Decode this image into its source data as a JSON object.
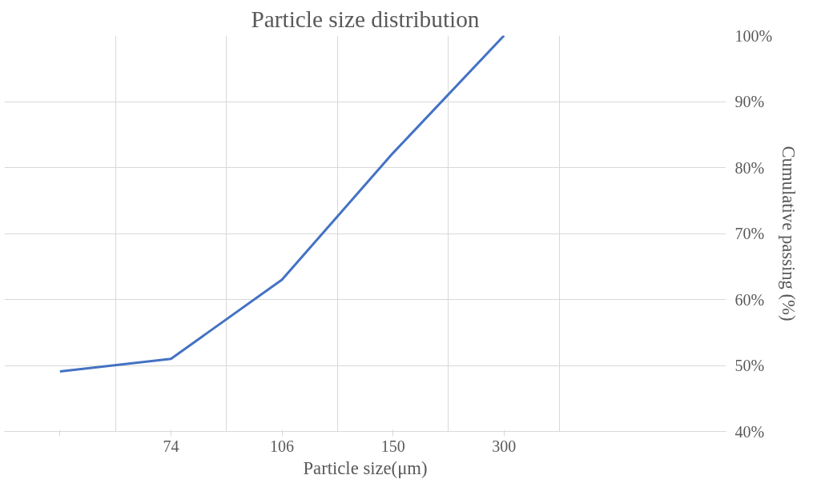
{
  "chart_data": {
    "type": "line",
    "title": "Particle size distribution",
    "xlabel": "Particle size(μm)",
    "ylabel": "Cumulative passing (%)",
    "categories": [
      null,
      "74",
      "106",
      "150",
      "300"
    ],
    "series": [
      {
        "color": "#4472c4",
        "values": [
          49.1,
          51,
          63,
          82.2,
          100
        ]
      }
    ],
    "ylim": [
      40,
      100
    ],
    "yticks": [
      {
        "value": 40,
        "label": "40%"
      },
      {
        "value": 50,
        "label": "50%"
      },
      {
        "value": 60,
        "label": "60%"
      },
      {
        "value": 70,
        "label": "70%"
      },
      {
        "value": 80,
        "label": "80%"
      },
      {
        "value": 90,
        "label": "90%"
      },
      {
        "value": 100,
        "label": "100%"
      }
    ],
    "grid": true,
    "marker": "none",
    "line_style": "solid"
  }
}
